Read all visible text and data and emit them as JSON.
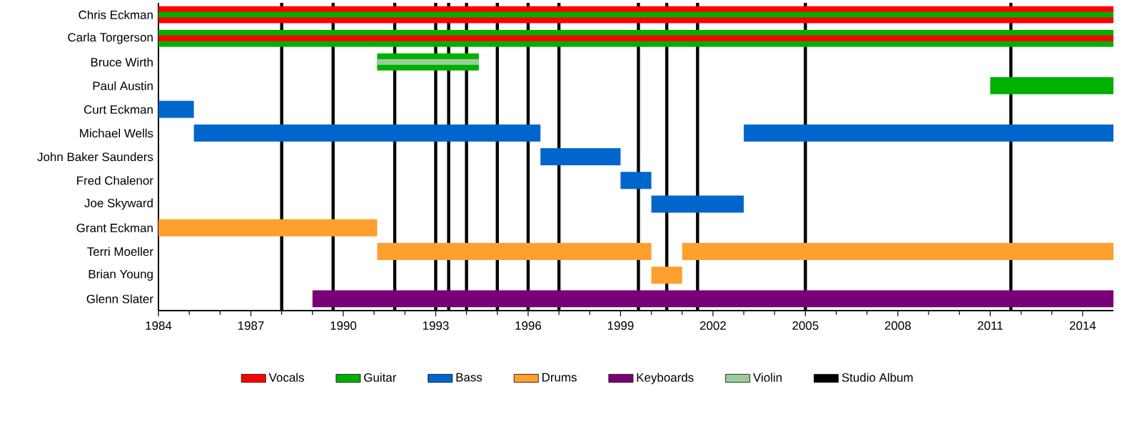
{
  "chart_data": {
    "type": "bar",
    "orientation": "horizontal",
    "categories": [
      "Chris Eckman",
      "Carla Torgerson",
      "Bruce Wirth",
      "Paul Austin",
      "Curt Eckman",
      "Michael Wells",
      "John Baker Saunders",
      "Fred Chalenor",
      "Joe Skyward",
      "Grant Eckman",
      "Terri Moeller",
      "Brian Young",
      "Glenn Slater"
    ],
    "series": [
      {
        "name": "Vocals",
        "color": "#ff0000",
        "base": [
          1984,
          null,
          null,
          null,
          null,
          null,
          null,
          null,
          null,
          null,
          null,
          null,
          null
        ],
        "values": [
          31,
          null,
          null,
          null,
          null,
          null,
          null,
          null,
          null,
          null,
          null,
          null,
          null
        ]
      },
      {
        "name": "Guitar",
        "color": "#00b000",
        "base": [
          null,
          1984,
          1991.1,
          2011,
          null,
          null,
          null,
          null,
          null,
          null,
          null,
          null,
          null
        ],
        "values": [
          null,
          31,
          3.3,
          4,
          null,
          null,
          null,
          null,
          null,
          null,
          null,
          null,
          null
        ]
      },
      {
        "name": "Bass",
        "color": "#0066cc",
        "base": [
          null,
          null,
          null,
          null,
          1984,
          1985.15,
          1996.4,
          1999,
          2000,
          null,
          null,
          null,
          null
        ],
        "values": [
          null,
          null,
          null,
          null,
          1.15,
          11.25,
          2.6,
          1,
          3,
          null,
          null,
          null,
          null
        ]
      },
      {
        "color": "#0066cc",
        "base": [
          null,
          null,
          null,
          null,
          null,
          2003,
          null,
          null,
          null,
          null,
          null,
          null,
          null
        ],
        "values": [
          null,
          null,
          null,
          null,
          null,
          12,
          null,
          null,
          null,
          null,
          null,
          null,
          null
        ]
      },
      {
        "name": "Drums",
        "color": "#ff9f2e",
        "base": [
          null,
          null,
          null,
          null,
          null,
          null,
          null,
          null,
          null,
          1984,
          1991.1,
          2000,
          null
        ],
        "values": [
          null,
          null,
          null,
          null,
          null,
          null,
          null,
          null,
          null,
          7.1,
          8.9,
          1,
          null
        ]
      },
      {
        "color": "#ff9f2e",
        "base": [
          null,
          null,
          null,
          null,
          null,
          null,
          null,
          null,
          null,
          null,
          2001,
          null,
          null
        ],
        "values": [
          null,
          null,
          null,
          null,
          null,
          null,
          null,
          null,
          null,
          null,
          14,
          null,
          null
        ]
      },
      {
        "name": "Keyboards",
        "color": "#7a0077",
        "base": [
          null,
          null,
          null,
          null,
          null,
          null,
          null,
          null,
          null,
          null,
          null,
          null,
          1989
        ],
        "values": [
          null,
          null,
          null,
          null,
          null,
          null,
          null,
          null,
          null,
          null,
          null,
          null,
          26
        ]
      },
      {
        "color": "#00b000",
        "base": [
          1984,
          null,
          null,
          null,
          null,
          null,
          null,
          null,
          null,
          null,
          null,
          null,
          null
        ],
        "values": [
          31,
          null,
          null,
          null,
          null,
          null,
          null,
          null,
          null,
          null,
          null,
          null,
          null
        ]
      },
      {
        "color": "#ff0000",
        "base": [
          null,
          1984,
          null,
          null,
          null,
          null,
          null,
          null,
          null,
          null,
          null,
          null,
          null
        ],
        "values": [
          null,
          31,
          null,
          null,
          null,
          null,
          null,
          null,
          null,
          null,
          null,
          null,
          null
        ]
      },
      {
        "name": "Violin",
        "color": "#99cc99",
        "base": [
          null,
          null,
          1991.1,
          null,
          null,
          null,
          null,
          null,
          null,
          null,
          null,
          null,
          null
        ],
        "values": [
          null,
          null,
          3.3,
          null,
          null,
          null,
          null,
          null,
          null,
          null,
          null,
          null,
          null
        ]
      }
    ],
    "xlim": [
      1984,
      2015
    ],
    "xticks": [
      1984,
      1987,
      1990,
      1993,
      1996,
      1999,
      2002,
      2005,
      2008,
      2011,
      2014
    ],
    "ref_lines": [
      {
        "axis": "x",
        "value": 1988.0,
        "label": "Studio Album",
        "color": "#000000"
      },
      {
        "axis": "x",
        "value": 1989.67,
        "color": "#000000"
      },
      {
        "axis": "x",
        "value": 1991.67,
        "color": "#000000"
      },
      {
        "axis": "x",
        "value": 1993.0,
        "color": "#000000"
      },
      {
        "axis": "x",
        "value": 1993.42,
        "color": "#000000"
      },
      {
        "axis": "x",
        "value": 1994.0,
        "color": "#000000"
      },
      {
        "axis": "x",
        "value": 1995.0,
        "color": "#000000"
      },
      {
        "axis": "x",
        "value": 1996.0,
        "color": "#000000"
      },
      {
        "axis": "x",
        "value": 1997.0,
        "color": "#000000"
      },
      {
        "axis": "x",
        "value": 1999.58,
        "color": "#000000"
      },
      {
        "axis": "x",
        "value": 2000.5,
        "color": "#000000"
      },
      {
        "axis": "x",
        "value": 2001.5,
        "color": "#000000"
      },
      {
        "axis": "x",
        "value": 2005.0,
        "color": "#000000"
      },
      {
        "axis": "x",
        "value": 2011.67,
        "color": "#000000"
      }
    ],
    "legend": "bottom"
  }
}
